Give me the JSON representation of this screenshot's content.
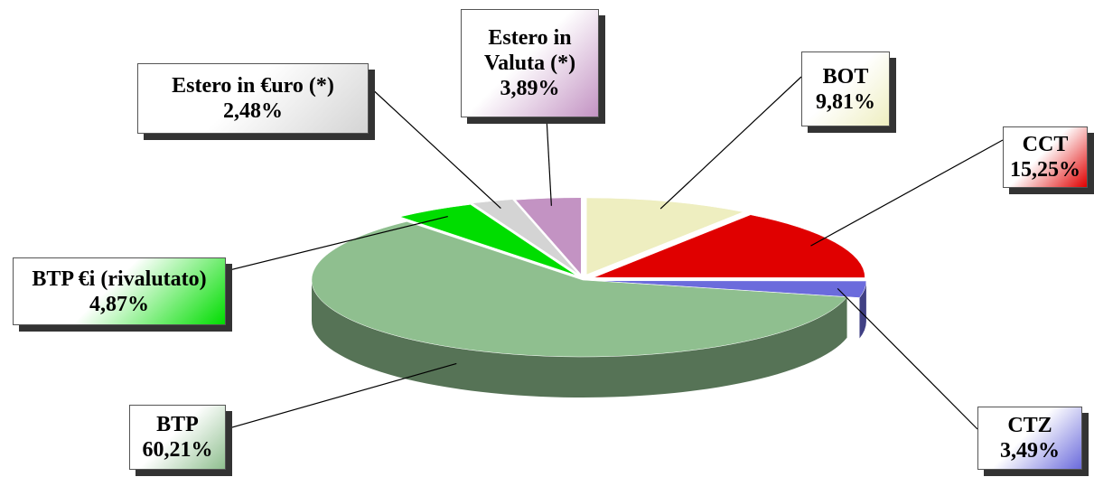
{
  "chart_data": {
    "type": "pie",
    "categories": [
      "BOT",
      "CCT",
      "CTZ",
      "BTP",
      "BTP €i (rivalutato)",
      "Estero in €uro (*)",
      "Estero in Valuta (*)"
    ],
    "values": [
      9.81,
      15.25,
      3.49,
      60.21,
      4.87,
      2.48,
      3.89
    ],
    "value_labels": [
      "9,81%",
      "15,25%",
      "3,49%",
      "60,21%",
      "4,87%",
      "2,48%",
      "3,89%"
    ],
    "colors": [
      "#eeeec0",
      "#e00000",
      "#6b6bdc",
      "#8fbf8f",
      "#00dd00",
      "#d4d4d4",
      "#c393c3"
    ]
  }
}
